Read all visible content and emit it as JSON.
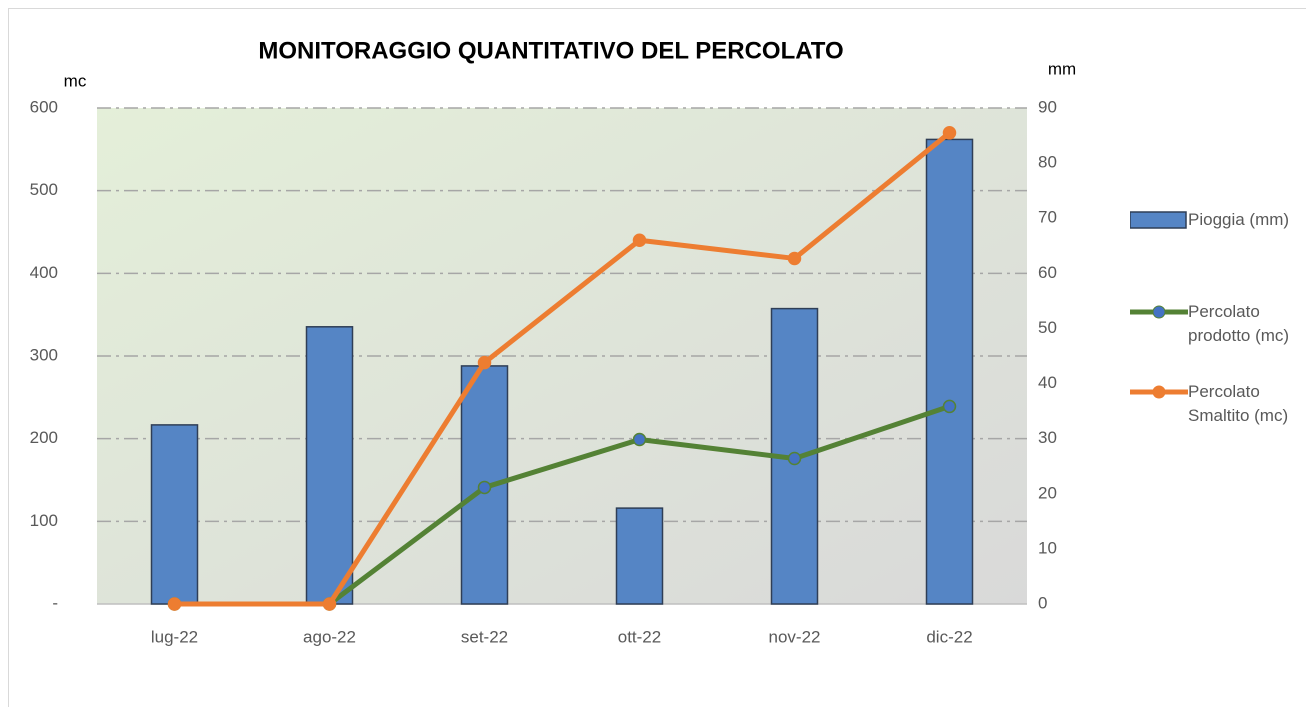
{
  "chart_data": {
    "type": "bar_line",
    "title": "MONITORAGGIO QUANTITATIVO DEL PERCOLATO",
    "y_label": "mc",
    "y2_label": "mm",
    "categories": [
      "lug-22",
      "ago-22",
      "set-22",
      "ott-22",
      "nov-22",
      "dic-22"
    ],
    "series": [
      {
        "name": "Pioggia (mm)",
        "type": "bar",
        "axis": "y2",
        "color": "#5585c5",
        "values": [
          32.5,
          50.3,
          43.2,
          17.4,
          53.6,
          84.3
        ]
      },
      {
        "name": " Percolato prodotto (mc)",
        "type": "line",
        "color": "#548235",
        "marker_color": "#4472c4",
        "values": [
          0,
          0,
          141,
          199,
          176,
          239
        ]
      },
      {
        "name": "Percolato Smaltito (mc)",
        "type": "line",
        "color": "#ed7d31",
        "marker_color": "#ed7d31",
        "values": [
          0,
          0,
          292,
          440,
          418,
          570
        ]
      }
    ],
    "ylim": [
      0,
      600
    ],
    "yticks": [
      {
        "value": 0,
        "label": "-"
      },
      100,
      200,
      300,
      400,
      500,
      600
    ],
    "y2lim": [
      0,
      90
    ],
    "y2ticks": [
      0,
      10,
      20,
      30,
      40,
      50,
      60,
      70,
      80,
      90
    ],
    "grid": true,
    "legend": "right"
  }
}
